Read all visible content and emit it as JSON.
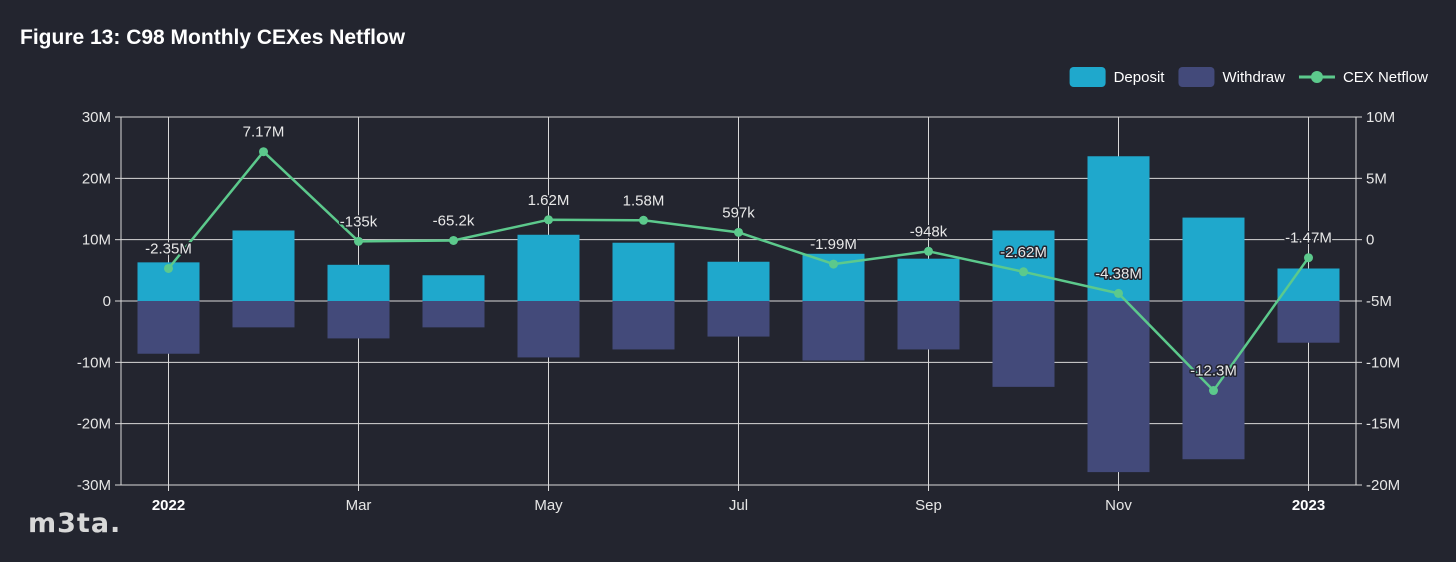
{
  "chart_data": {
    "type": "bar",
    "title": "Figure 13: C98 Monthly CEXes Netflow",
    "x_tick_labels": [
      "2022",
      "Mar",
      "May",
      "Jul",
      "Sep",
      "Nov",
      "2023"
    ],
    "x_tick_bold": [
      true,
      false,
      false,
      false,
      false,
      false,
      true
    ],
    "months": [
      "2022-01",
      "2022-02",
      "2022-03",
      "2022-04",
      "2022-05",
      "2022-06",
      "2022-07",
      "2022-08",
      "2022-09",
      "2022-10",
      "2022-11",
      "2022-12",
      "2023-01"
    ],
    "y_left": {
      "ylim": [
        -30000000,
        30000000
      ],
      "ticks": [
        30000000,
        20000000,
        10000000,
        0,
        -10000000,
        -20000000,
        -30000000
      ],
      "tick_labels": [
        "30M",
        "20M",
        "10M",
        "0",
        "-10M",
        "-20M",
        "-30M"
      ]
    },
    "y_right": {
      "ylim": [
        -20000000,
        10000000
      ],
      "ticks": [
        10000000,
        5000000,
        0,
        -5000000,
        -10000000,
        -15000000,
        -20000000
      ],
      "tick_labels": [
        "10M",
        "5M",
        "0",
        "-5M",
        "-10M",
        "-15M",
        "-20M"
      ]
    },
    "grid": true,
    "legend_position": "top-right",
    "series": [
      {
        "name": "Deposit",
        "type": "bar",
        "axis": "left",
        "color": "#1fa8cc",
        "values": [
          6300000,
          11500000,
          5900000,
          4200000,
          10800000,
          9500000,
          6400000,
          7700000,
          6900000,
          11500000,
          23600000,
          13600000,
          5300000
        ]
      },
      {
        "name": "Withdraw",
        "type": "bar",
        "axis": "left",
        "color": "#434a7a",
        "values": [
          -8600000,
          -4300000,
          -6100000,
          -4300000,
          -9200000,
          -7900000,
          -5800000,
          -9700000,
          -7900000,
          -14000000,
          -27900000,
          -25800000,
          -6800000
        ]
      },
      {
        "name": "CEX Netflow",
        "type": "line",
        "axis": "right",
        "color": "#5cc98c",
        "values": [
          -2350000,
          7170000,
          -135000,
          -65200,
          1620000,
          1580000,
          597000,
          -1990000,
          -948000,
          -2620000,
          -4380000,
          -12300000,
          -1470000
        ],
        "labels": [
          "-2.35M",
          "7.17M",
          "-135k",
          "-65.2k",
          "1.62M",
          "1.58M",
          "597k",
          "-1.99M",
          "-948k",
          "-2.62M",
          "-4.38M",
          "-12.3M",
          "-1.47M"
        ]
      }
    ]
  },
  "watermark": "m3ta."
}
